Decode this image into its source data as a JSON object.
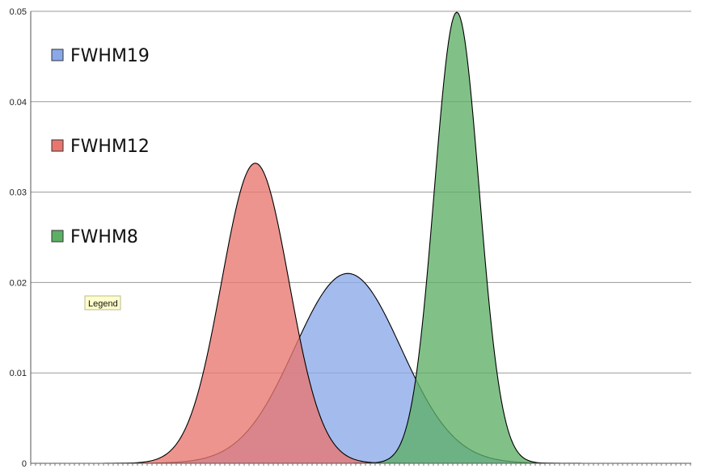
{
  "chart_data": {
    "type": "area",
    "title": "",
    "xlabel": "",
    "ylabel": "",
    "ylim": [
      0,
      0.05
    ],
    "yticks": [
      "0",
      "0.01",
      "0.02",
      "0.03",
      "0.04",
      "0.05"
    ],
    "xlim": [
      0,
      100
    ],
    "grid": true,
    "legend_position": "top-left",
    "tooltip": "Legend",
    "series": [
      {
        "name": "FWHM19",
        "color": "#8aa8e8",
        "center": 48,
        "fwhm": 19,
        "peak": 0.021
      },
      {
        "name": "FWHM12",
        "color": "#e8766f",
        "center": 34,
        "fwhm": 12,
        "peak": 0.0332
      },
      {
        "name": "FWHM8",
        "color": "#5eaf66",
        "center": 64.5,
        "fwhm": 8,
        "peak": 0.0499
      }
    ]
  }
}
